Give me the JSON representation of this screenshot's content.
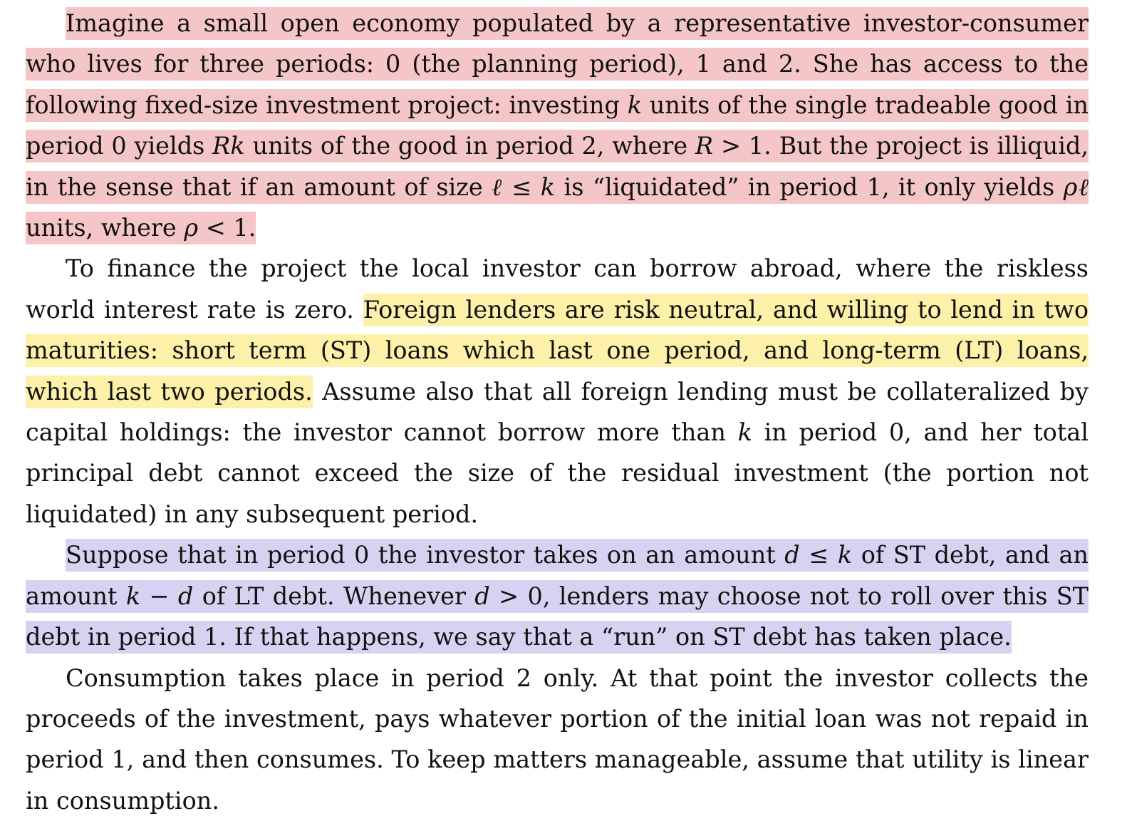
{
  "document": {
    "paragraphs": [
      {
        "id": "p1",
        "segments": [
          {
            "text": "Imagine a small open economy populated by a representative investor-consumer who lives for three periods: 0 (the planning period), 1 and 2. She has access to the following fixed-size investment project: investing ",
            "highlight": "red"
          },
          {
            "text": "k",
            "highlight": "red",
            "math": true
          },
          {
            "text": " units of the single tradeable good in period 0 yields ",
            "highlight": "red"
          },
          {
            "text": "Rk",
            "highlight": "red",
            "math": true
          },
          {
            "text": " units of the good in period 2, where ",
            "highlight": "red"
          },
          {
            "text": "R",
            "highlight": "red",
            "math": true
          },
          {
            "text": " > 1. But the project is illiquid, in the sense that if an amount of size ",
            "highlight": "red"
          },
          {
            "text": "ℓ",
            "highlight": "red",
            "math": true
          },
          {
            "text": " ≤ ",
            "highlight": "red"
          },
          {
            "text": "k",
            "highlight": "red",
            "math": true
          },
          {
            "text": " is “liquidated” in period 1, it only yields ",
            "highlight": "red"
          },
          {
            "text": "ρℓ",
            "highlight": "red",
            "math": true
          },
          {
            "text": " units, where ",
            "highlight": "red"
          },
          {
            "text": "ρ",
            "highlight": "red",
            "math": true
          },
          {
            "text": " < 1.",
            "highlight": "red"
          }
        ]
      },
      {
        "id": "p2",
        "segments": [
          {
            "text": "To finance the project the local investor can borrow abroad, where the riskless world interest rate is zero. ",
            "highlight": "none"
          },
          {
            "text": "Foreign lenders are risk neutral, and willing to lend in two maturities: short term (ST) loans which last one period, and long-term (LT) loans, which last two periods.",
            "highlight": "yellow"
          },
          {
            "text": " Assume also that all foreign lending must be collateralized by capital holdings: the investor cannot borrow more than ",
            "highlight": "none"
          },
          {
            "text": "k",
            "highlight": "none",
            "math": true
          },
          {
            "text": " in period 0, and her total principal debt cannot exceed the size of the residual investment (the portion not liquidated) in any subsequent period.",
            "highlight": "none"
          }
        ]
      },
      {
        "id": "p3",
        "segments": [
          {
            "text": "Suppose that in period 0 the investor takes on an amount ",
            "highlight": "purple"
          },
          {
            "text": "d",
            "highlight": "purple",
            "math": true
          },
          {
            "text": " ≤ ",
            "highlight": "purple"
          },
          {
            "text": "k",
            "highlight": "purple",
            "math": true
          },
          {
            "text": " of ST debt, and an amount ",
            "highlight": "purple"
          },
          {
            "text": "k",
            "highlight": "purple",
            "math": true
          },
          {
            "text": " − ",
            "highlight": "purple"
          },
          {
            "text": "d",
            "highlight": "purple",
            "math": true
          },
          {
            "text": " of LT debt. Whenever ",
            "highlight": "purple"
          },
          {
            "text": "d",
            "highlight": "purple",
            "math": true
          },
          {
            "text": " > 0, lenders may choose not to roll over this ST debt in period 1. If that happens, we say that a “run” on ST debt has taken place.",
            "highlight": "purple"
          }
        ]
      },
      {
        "id": "p4",
        "segments": [
          {
            "text": "Consumption takes place in period 2 only. At that point the investor collects the proceeds of the investment, pays whatever portion of the initial loan was not repaid in period 1, and then consumes. To keep matters manageable, assume that utility is linear in consumption.",
            "highlight": "none"
          }
        ]
      }
    ]
  },
  "colors": {
    "highlight_red": "#f5c6c7",
    "highlight_yellow": "#fdf0a8",
    "highlight_purple": "#d8d2f2",
    "text": "#111111",
    "background": "#ffffff"
  }
}
